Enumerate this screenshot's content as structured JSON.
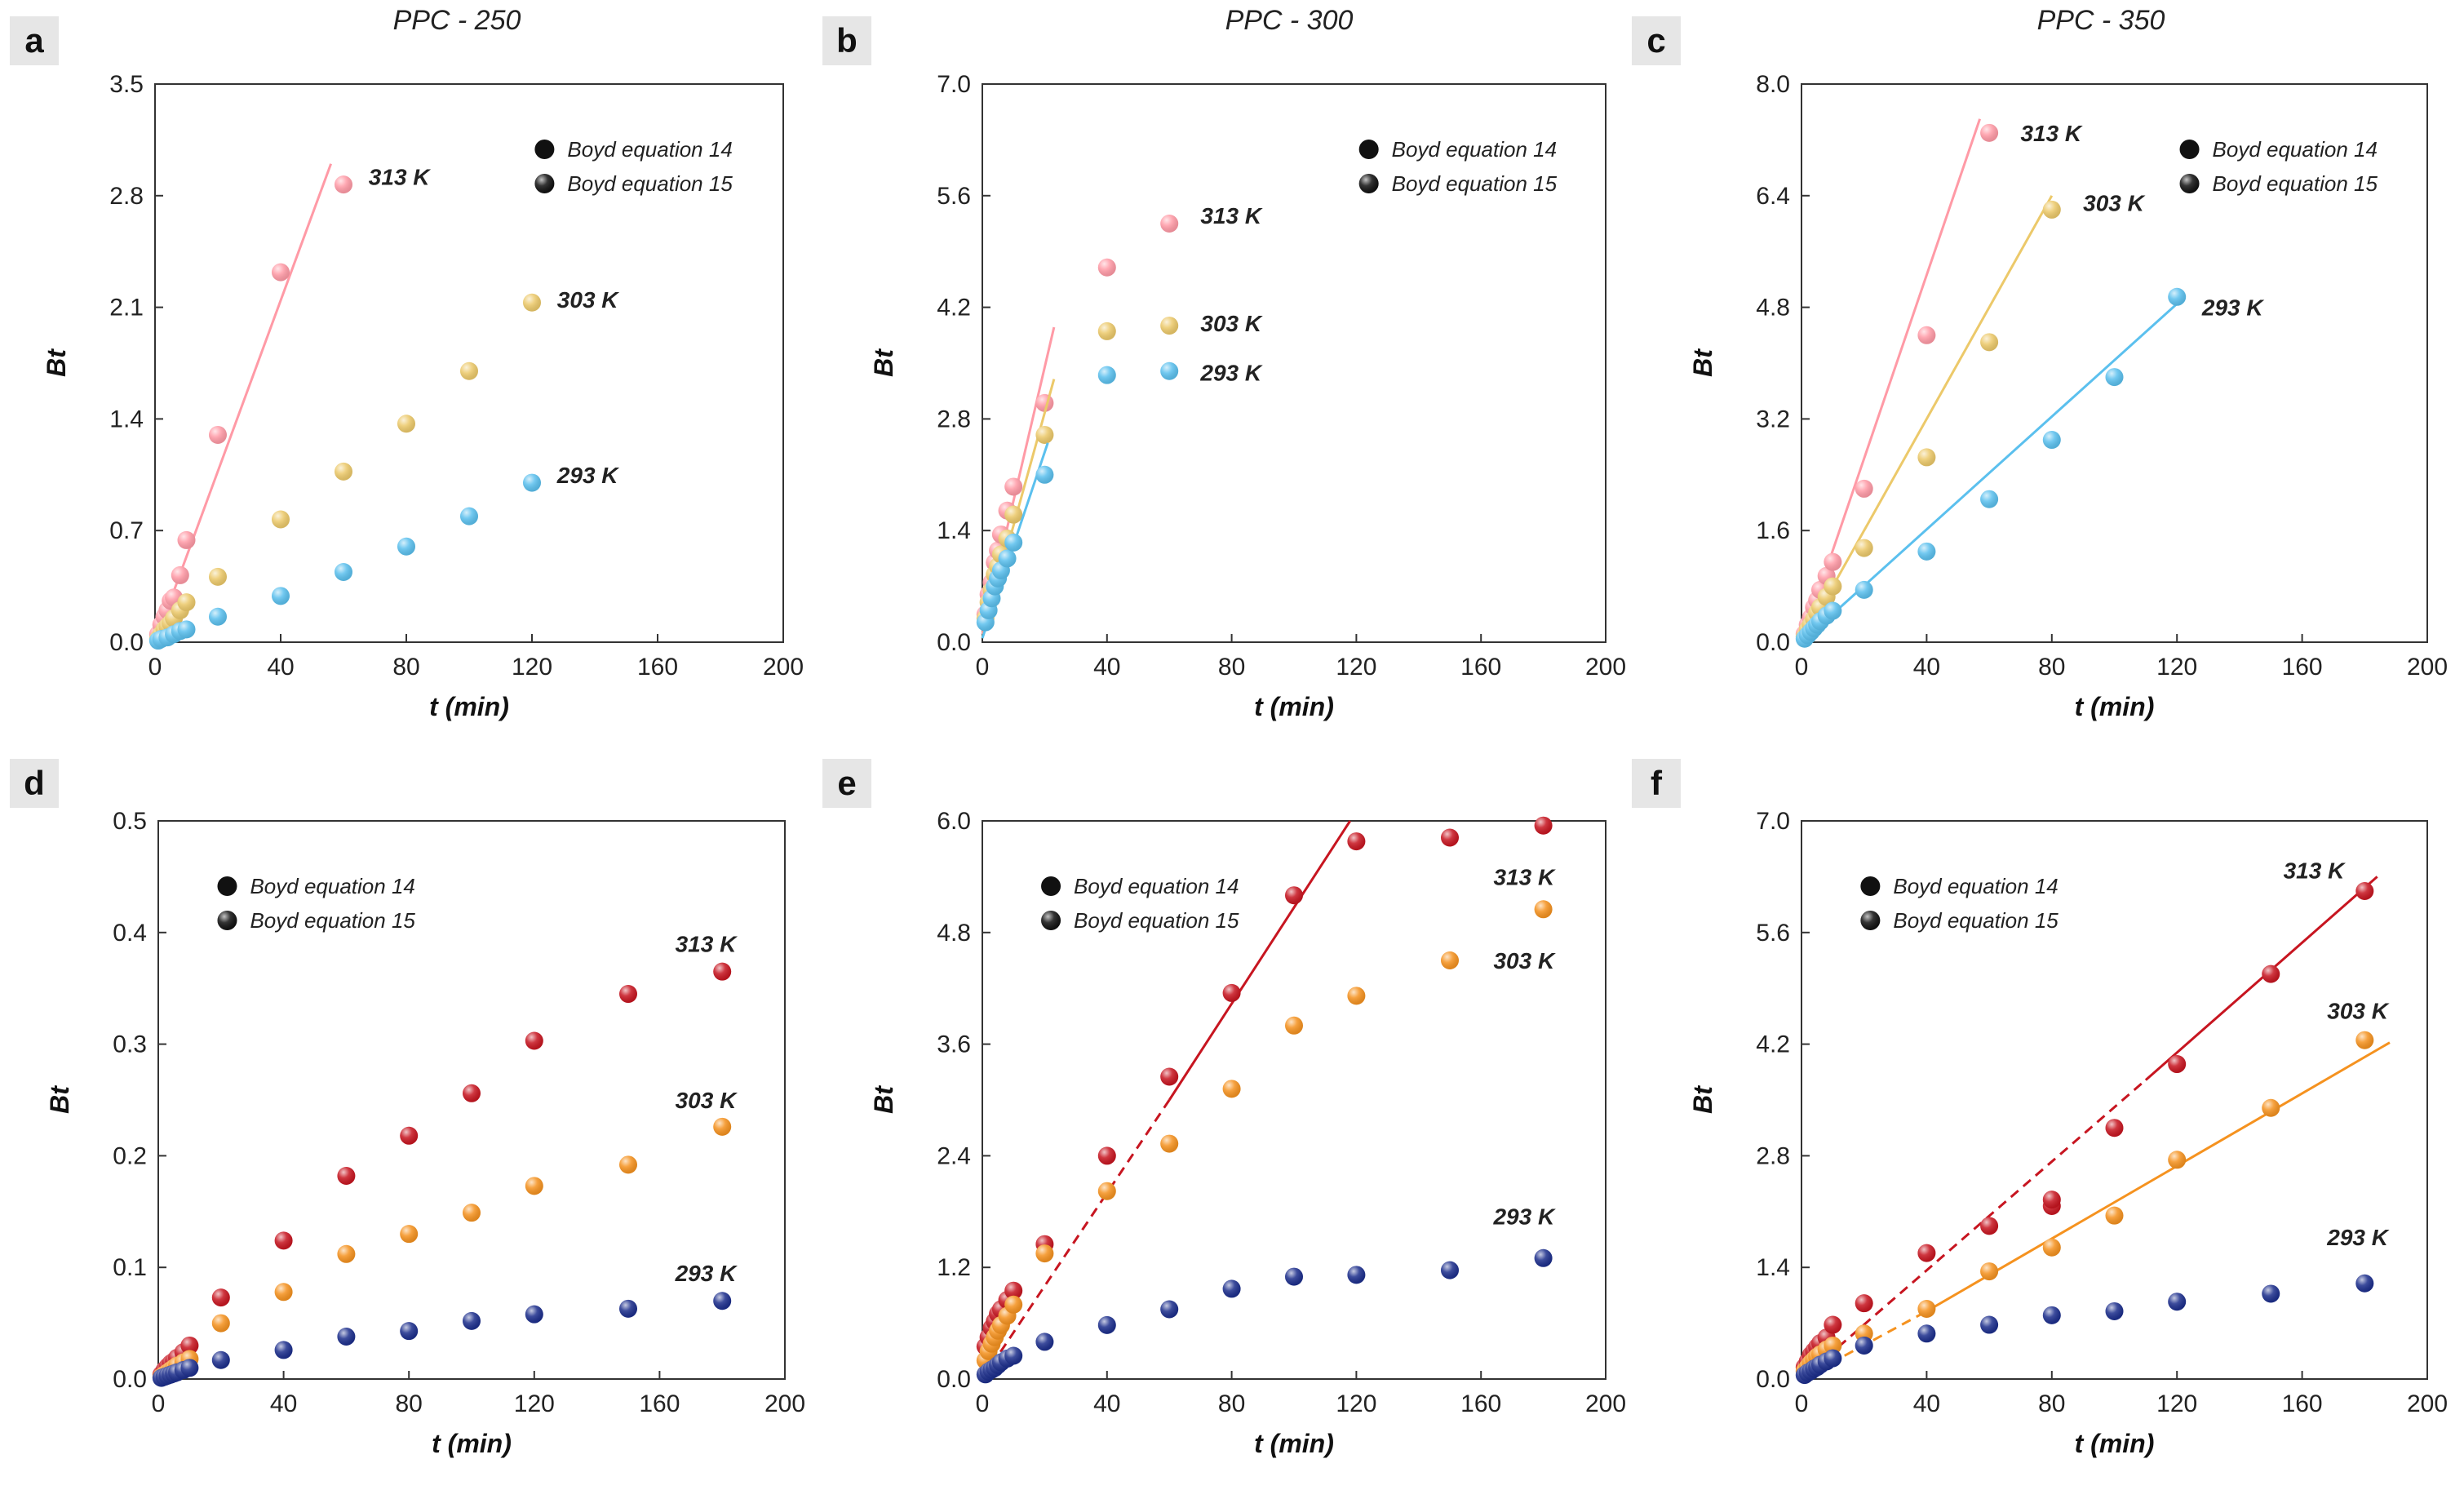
{
  "figure": {
    "marker_colors": {
      "red": "#ff9aa6",
      "yellow": "#ecc96a",
      "blue": "#5bc0ee",
      "darkred": "#c71520",
      "orange": "#f5921f",
      "navy": "#1c2e8c",
      "legend": "#111111"
    }
  },
  "chart_data": [
    {
      "panel": "a",
      "title": "PPC - 250",
      "type": "scatter",
      "xlabel": "t (min)",
      "ylabel": "Bt",
      "xlim": [
        0,
        200
      ],
      "ylim": [
        0,
        3.5
      ],
      "xticks": [
        "0",
        "40",
        "80",
        "120",
        "160",
        "200"
      ],
      "yticks": [
        "0.0",
        "0.7",
        "1.4",
        "2.1",
        "2.8",
        "3.5"
      ],
      "legend": {
        "position": "top-right",
        "items": [
          "Boyd equation 14",
          "Boyd equation 15"
        ]
      },
      "series": [
        {
          "name": "313 K",
          "color": "#ff9aa6",
          "label": "313 K",
          "label_at": [
            68,
            2.92
          ],
          "x": [
            1,
            2,
            3,
            4,
            5,
            6,
            8,
            10,
            20,
            40,
            60
          ],
          "y": [
            0.05,
            0.11,
            0.16,
            0.2,
            0.26,
            0.28,
            0.42,
            0.64,
            1.3,
            2.32,
            2.87
          ],
          "fit": [
            [
              0,
              0
            ],
            [
              56,
              3.0
            ]
          ],
          "fit_style": "solid"
        },
        {
          "name": "303 K",
          "color": "#ecc96a",
          "label": "303 K",
          "label_at": [
            128,
            2.15
          ],
          "x": [
            1,
            2,
            3,
            4,
            5,
            6,
            8,
            10,
            20,
            40,
            60,
            80,
            100,
            120
          ],
          "y": [
            0.02,
            0.05,
            0.08,
            0.1,
            0.12,
            0.15,
            0.2,
            0.25,
            0.41,
            0.77,
            1.07,
            1.37,
            1.7,
            2.13
          ],
          "fit": [
            [
              0,
              0
            ],
            [
              10,
              0.26
            ]
          ],
          "fit_style": "solid"
        },
        {
          "name": "293 K",
          "color": "#5bc0ee",
          "label": "293 K",
          "label_at": [
            128,
            1.05
          ],
          "x": [
            1,
            2,
            4,
            6,
            8,
            10,
            20,
            40,
            60,
            80,
            100,
            120
          ],
          "y": [
            0.01,
            0.02,
            0.03,
            0.05,
            0.07,
            0.08,
            0.16,
            0.29,
            0.44,
            0.6,
            0.79,
            1.0
          ],
          "fit": [
            [
              0,
              0
            ],
            [
              10,
              0.08
            ]
          ],
          "fit_style": "solid"
        }
      ]
    },
    {
      "panel": "b",
      "title": "PPC - 300",
      "type": "scatter",
      "xlabel": "t (min)",
      "ylabel": "Bt",
      "xlim": [
        0,
        200
      ],
      "ylim": [
        0,
        7.0
      ],
      "xticks": [
        "0",
        "40",
        "80",
        "120",
        "160",
        "200"
      ],
      "yticks": [
        "0.0",
        "1.4",
        "2.8",
        "4.2",
        "5.6",
        "7.0"
      ],
      "legend": {
        "position": "top-right",
        "items": [
          "Boyd equation 14",
          "Boyd equation 15"
        ]
      },
      "series": [
        {
          "name": "313 K",
          "color": "#ff9aa6",
          "label": "313 K",
          "label_at": [
            70,
            5.35
          ],
          "x": [
            1,
            2,
            3,
            4,
            5,
            6,
            8,
            10,
            20,
            40,
            60
          ],
          "y": [
            0.35,
            0.6,
            0.75,
            1.0,
            1.15,
            1.35,
            1.65,
            1.95,
            3.0,
            4.7,
            5.25
          ],
          "fit": [
            [
              0,
              0.1
            ],
            [
              23,
              3.95
            ]
          ],
          "fit_style": "solid"
        },
        {
          "name": "303 K",
          "color": "#ecc96a",
          "label": "303 K",
          "label_at": [
            70,
            4.0
          ],
          "x": [
            1,
            2,
            3,
            4,
            5,
            6,
            8,
            10,
            20,
            40,
            60
          ],
          "y": [
            0.3,
            0.5,
            0.65,
            0.85,
            0.95,
            1.1,
            1.3,
            1.6,
            2.6,
            3.9,
            3.97
          ],
          "fit": [
            [
              0,
              0.05
            ],
            [
              23,
              3.3
            ]
          ],
          "fit_style": "solid"
        },
        {
          "name": "293 K",
          "color": "#5bc0ee",
          "label": "293 K",
          "label_at": [
            70,
            3.38
          ],
          "x": [
            1,
            2,
            3,
            4,
            5,
            6,
            8,
            10,
            20,
            40,
            60
          ],
          "y": [
            0.25,
            0.4,
            0.55,
            0.7,
            0.8,
            0.9,
            1.05,
            1.25,
            2.1,
            3.35,
            3.4
          ],
          "fit": [
            [
              0,
              0.05
            ],
            [
              21,
              2.5
            ]
          ],
          "fit_style": "solid"
        }
      ]
    },
    {
      "panel": "c",
      "title": "PPC - 350",
      "type": "scatter",
      "xlabel": "t (min)",
      "ylabel": "Bt",
      "xlim": [
        0,
        200
      ],
      "ylim": [
        0,
        8.0
      ],
      "xticks": [
        "0",
        "40",
        "80",
        "120",
        "160",
        "200"
      ],
      "yticks": [
        "0.0",
        "1.6",
        "3.2",
        "4.8",
        "6.4",
        "8.0"
      ],
      "legend": {
        "position": "top-right",
        "items": [
          "Boyd equation 14",
          "Boyd equation 15"
        ]
      },
      "series": [
        {
          "name": "313 K",
          "color": "#ff9aa6",
          "label": "313 K",
          "label_at": [
            70,
            7.3
          ],
          "x": [
            1,
            2,
            3,
            4,
            5,
            6,
            8,
            10,
            20,
            40,
            60
          ],
          "y": [
            0.12,
            0.25,
            0.35,
            0.5,
            0.6,
            0.75,
            0.95,
            1.15,
            2.2,
            4.4,
            7.3
          ],
          "fit": [
            [
              0,
              0
            ],
            [
              57,
              7.5
            ]
          ],
          "fit_style": "solid"
        },
        {
          "name": "303 K",
          "color": "#ecc96a",
          "label": "303 K",
          "label_at": [
            90,
            6.3
          ],
          "x": [
            1,
            2,
            3,
            4,
            5,
            6,
            8,
            10,
            20,
            40,
            60,
            80
          ],
          "y": [
            0.08,
            0.18,
            0.25,
            0.33,
            0.42,
            0.5,
            0.65,
            0.8,
            1.35,
            2.65,
            4.3,
            6.2
          ],
          "fit": [
            [
              0,
              0
            ],
            [
              80,
              6.4
            ]
          ],
          "fit_style": "solid"
        },
        {
          "name": "293 K",
          "color": "#5bc0ee",
          "label": "293 K",
          "label_at": [
            128,
            4.8
          ],
          "x": [
            1,
            2,
            3,
            4,
            5,
            6,
            8,
            10,
            20,
            40,
            60,
            80,
            100,
            120
          ],
          "y": [
            0.05,
            0.1,
            0.15,
            0.2,
            0.25,
            0.3,
            0.38,
            0.45,
            0.75,
            1.3,
            2.05,
            2.9,
            3.8,
            4.95
          ],
          "fit": [
            [
              0,
              0
            ],
            [
              120,
              4.85
            ]
          ],
          "fit_style": "solid"
        }
      ]
    },
    {
      "panel": "d",
      "title": "",
      "type": "scatter",
      "xlabel": "t (min)",
      "ylabel": "Bt",
      "xlim": [
        0,
        200
      ],
      "ylim": [
        0,
        0.5
      ],
      "xticks": [
        "0",
        "40",
        "80",
        "120",
        "160",
        "200"
      ],
      "yticks": [
        "0.0",
        "0.1",
        "0.2",
        "0.3",
        "0.4",
        "0.5"
      ],
      "legend": {
        "position": "top-left",
        "items": [
          "Boyd equation 14",
          "Boyd equation 15"
        ]
      },
      "series": [
        {
          "name": "313 K",
          "color": "#c71520",
          "label": "313 K",
          "label_at": [
            165,
            0.39
          ],
          "x": [
            1,
            2,
            3,
            4,
            5,
            6,
            8,
            10,
            20,
            40,
            60,
            80,
            100,
            120,
            150,
            180
          ],
          "y": [
            0.004,
            0.008,
            0.011,
            0.014,
            0.016,
            0.019,
            0.024,
            0.03,
            0.073,
            0.124,
            0.182,
            0.218,
            0.256,
            0.303,
            0.345,
            0.365
          ],
          "fit": [],
          "fit_style": "solid"
        },
        {
          "name": "303 K",
          "color": "#f5921f",
          "label": "303 K",
          "label_at": [
            165,
            0.25
          ],
          "x": [
            1,
            2,
            3,
            4,
            5,
            6,
            8,
            10,
            20,
            40,
            60,
            80,
            100,
            120,
            150,
            180
          ],
          "y": [
            0.002,
            0.004,
            0.006,
            0.008,
            0.01,
            0.012,
            0.015,
            0.018,
            0.05,
            0.078,
            0.112,
            0.13,
            0.149,
            0.173,
            0.192,
            0.226
          ],
          "fit": [],
          "fit_style": "solid"
        },
        {
          "name": "293 K",
          "color": "#1c2e8c",
          "label": "293 K",
          "label_at": [
            165,
            0.095
          ],
          "x": [
            1,
            2,
            3,
            4,
            5,
            6,
            8,
            10,
            20,
            40,
            60,
            80,
            100,
            120,
            150,
            180
          ],
          "y": [
            0.001,
            0.002,
            0.003,
            0.004,
            0.005,
            0.006,
            0.008,
            0.01,
            0.017,
            0.026,
            0.038,
            0.043,
            0.052,
            0.058,
            0.063,
            0.07
          ],
          "fit": [],
          "fit_style": "solid"
        }
      ]
    },
    {
      "panel": "e",
      "title": "",
      "type": "scatter",
      "xlabel": "t (min)",
      "ylabel": "Bt",
      "xlim": [
        0,
        200
      ],
      "ylim": [
        0,
        6.0
      ],
      "xticks": [
        "0",
        "40",
        "80",
        "120",
        "160",
        "200"
      ],
      "yticks": [
        "0.0",
        "1.2",
        "2.4",
        "3.6",
        "4.8",
        "6.0"
      ],
      "legend": {
        "position": "top-left",
        "items": [
          "Boyd equation 14",
          "Boyd equation 15"
        ]
      },
      "series": [
        {
          "name": "313 K",
          "color": "#c71520",
          "label": "313 K",
          "label_at": [
            164,
            5.4
          ],
          "x": [
            1,
            2,
            3,
            4,
            5,
            6,
            8,
            10,
            20,
            40,
            60,
            80,
            100,
            120,
            150,
            180
          ],
          "y": [
            0.35,
            0.45,
            0.55,
            0.62,
            0.7,
            0.75,
            0.85,
            0.95,
            1.45,
            2.4,
            3.25,
            4.15,
            5.2,
            5.78,
            5.82,
            5.95
          ],
          "fit": [
            [
              0,
              0
            ],
            [
              60,
              3.0
            ]
          ],
          "fit_style": "dashed",
          "fit2": [
            [
              60,
              3.0
            ],
            [
              118,
              6.0
            ]
          ]
        },
        {
          "name": "303 K",
          "color": "#f5921f",
          "label": "303 K",
          "label_at": [
            164,
            4.5
          ],
          "x": [
            1,
            2,
            3,
            4,
            5,
            6,
            8,
            10,
            20,
            40,
            60,
            80,
            100,
            120,
            150,
            180
          ],
          "y": [
            0.2,
            0.3,
            0.38,
            0.45,
            0.52,
            0.58,
            0.68,
            0.8,
            1.35,
            2.02,
            2.53,
            3.12,
            3.8,
            4.12,
            4.5,
            5.05
          ],
          "fit": [],
          "fit_style": "solid"
        },
        {
          "name": "293 K",
          "color": "#1c2e8c",
          "label": "293 K",
          "label_at": [
            164,
            1.75
          ],
          "x": [
            1,
            2,
            3,
            4,
            5,
            6,
            8,
            10,
            20,
            40,
            60,
            80,
            100,
            120,
            150,
            180
          ],
          "y": [
            0.05,
            0.08,
            0.1,
            0.12,
            0.15,
            0.18,
            0.22,
            0.25,
            0.4,
            0.58,
            0.75,
            0.97,
            1.1,
            1.12,
            1.17,
            1.3
          ],
          "fit": [],
          "fit_style": "solid"
        }
      ]
    },
    {
      "panel": "f",
      "title": "",
      "type": "scatter",
      "xlabel": "t (min)",
      "ylabel": "Bt",
      "xlim": [
        0,
        200
      ],
      "ylim": [
        0,
        7.0
      ],
      "xticks": [
        "0",
        "40",
        "80",
        "120",
        "160",
        "200"
      ],
      "yticks": [
        "0.0",
        "1.4",
        "2.8",
        "4.2",
        "5.6",
        "7.0"
      ],
      "legend": {
        "position": "top-left",
        "items": [
          "Boyd equation 14",
          "Boyd equation 15"
        ]
      },
      "series": [
        {
          "name": "313 K",
          "color": "#c71520",
          "label": "313 K",
          "label_at": [
            154,
            6.38
          ],
          "x": [
            1,
            2,
            3,
            4,
            5,
            6,
            8,
            10,
            20,
            40,
            60,
            80,
            80,
            100,
            120,
            150,
            180
          ],
          "y": [
            0.15,
            0.22,
            0.3,
            0.35,
            0.4,
            0.45,
            0.52,
            0.68,
            0.95,
            1.58,
            1.92,
            2.17,
            2.25,
            3.15,
            3.95,
            5.08,
            6.12
          ],
          "fit": [
            [
              0,
              0
            ],
            [
              110,
              3.75
            ]
          ],
          "fit_style": "dashed",
          "fit2": [
            [
              110,
              3.75
            ],
            [
              184,
              6.3
            ]
          ]
        },
        {
          "name": "303 K",
          "color": "#f5921f",
          "label": "303 K",
          "label_at": [
            168,
            4.62
          ],
          "x": [
            1,
            2,
            3,
            4,
            5,
            6,
            8,
            10,
            20,
            40,
            60,
            80,
            100,
            120,
            150,
            180
          ],
          "y": [
            0.1,
            0.15,
            0.2,
            0.24,
            0.28,
            0.31,
            0.37,
            0.42,
            0.57,
            0.88,
            1.35,
            1.65,
            2.05,
            2.75,
            3.4,
            4.25
          ],
          "fit": [
            [
              0,
              0
            ],
            [
              40,
              0.85
            ]
          ],
          "fit_style": "dashed",
          "fit2": [
            [
              40,
              0.85
            ],
            [
              188,
              4.22
            ]
          ]
        },
        {
          "name": "293 K",
          "color": "#1c2e8c",
          "label": "293 K",
          "label_at": [
            168,
            1.78
          ],
          "x": [
            1,
            2,
            3,
            4,
            5,
            6,
            8,
            10,
            20,
            40,
            60,
            80,
            100,
            120,
            150,
            180
          ],
          "y": [
            0.05,
            0.08,
            0.1,
            0.13,
            0.15,
            0.18,
            0.22,
            0.26,
            0.42,
            0.57,
            0.68,
            0.8,
            0.85,
            0.97,
            1.07,
            1.2
          ],
          "fit": [],
          "fit_style": "solid"
        }
      ]
    }
  ]
}
